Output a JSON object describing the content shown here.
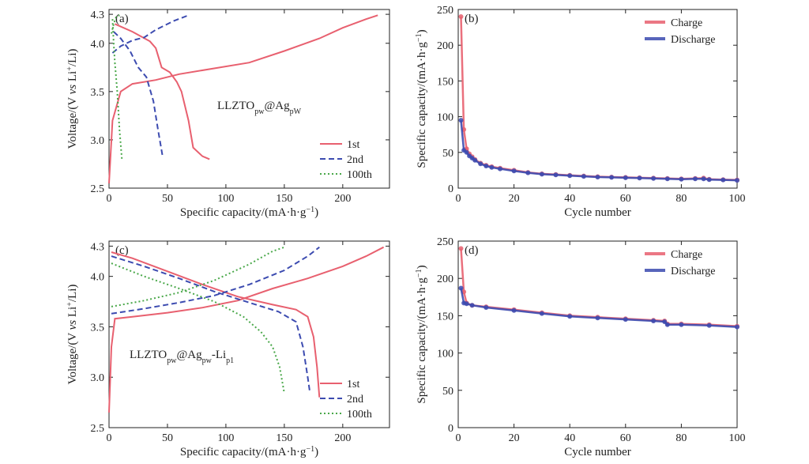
{
  "chart_data": [
    {
      "type": "line",
      "panel_label": "(a)",
      "annotation": {
        "base1": "LLZTO",
        "sub1": "pw",
        "mid": "@Ag",
        "sub2": "pW",
        "tail_base": "",
        "tail_sub": ""
      },
      "ylabel": {
        "a": "Voltage/(V ",
        "vs": "vs",
        "b": " Li",
        "sup": "+",
        "c": "/Li)"
      },
      "xlabel": {
        "a": "Specific capacity/(mA·h·g",
        "sup": "−1",
        "b": ")"
      },
      "xlim": [
        0,
        240
      ],
      "ylim": [
        2.5,
        4.35
      ],
      "xticks": [
        "0",
        "50",
        "100",
        "150",
        "200"
      ],
      "yticks": [
        "2.5",
        "3.0",
        "3.5",
        "4.0",
        "4.3"
      ],
      "legend": "bottom-right",
      "series": [
        {
          "name": "1st",
          "color": "#e8606f",
          "style": "solid",
          "charge": [
            [
              0,
              2.55
            ],
            [
              3,
              3.2
            ],
            [
              10,
              3.5
            ],
            [
              20,
              3.58
            ],
            [
              40,
              3.62
            ],
            [
              60,
              3.68
            ],
            [
              90,
              3.74
            ],
            [
              120,
              3.8
            ],
            [
              150,
              3.92
            ],
            [
              180,
              4.05
            ],
            [
              200,
              4.16
            ],
            [
              220,
              4.25
            ],
            [
              230,
              4.29
            ]
          ],
          "discharge": [
            [
              5,
              4.2
            ],
            [
              20,
              4.12
            ],
            [
              35,
              4.02
            ],
            [
              40,
              3.95
            ],
            [
              45,
              3.75
            ],
            [
              52,
              3.7
            ],
            [
              58,
              3.6
            ],
            [
              62,
              3.5
            ],
            [
              68,
              3.2
            ],
            [
              72,
              2.92
            ],
            [
              80,
              2.83
            ],
            [
              86,
              2.8
            ]
          ]
        },
        {
          "name": "2nd",
          "color": "#3c4bb0",
          "style": "dashed",
          "charge": [
            [
              3,
              3.9
            ],
            [
              10,
              3.97
            ],
            [
              20,
              4.03
            ],
            [
              30,
              4.06
            ],
            [
              40,
              4.14
            ],
            [
              55,
              4.23
            ],
            [
              68,
              4.29
            ]
          ],
          "discharge": [
            [
              4,
              4.12
            ],
            [
              10,
              4.05
            ],
            [
              18,
              3.92
            ],
            [
              25,
              3.75
            ],
            [
              32,
              3.65
            ],
            [
              38,
              3.4
            ],
            [
              42,
              3.1
            ],
            [
              46,
              2.82
            ]
          ]
        },
        {
          "name": "100th",
          "color": "#4aa84a",
          "style": "dotted",
          "charge": [
            [
              2,
              4.1
            ],
            [
              4,
              4.2
            ],
            [
              6,
              4.27
            ],
            [
              9,
              4.29
            ]
          ],
          "discharge": [
            [
              3,
              4.25
            ],
            [
              4,
              4.0
            ],
            [
              5,
              3.8
            ],
            [
              7,
              3.5
            ],
            [
              9,
              3.1
            ],
            [
              11,
              2.8
            ]
          ]
        }
      ]
    },
    {
      "type": "line",
      "panel_label": "(b)",
      "ylabel": {
        "a": "Specific capacity/(mA·h·g",
        "sup": "−1",
        "b": ")"
      },
      "xlabel": "Cycle number",
      "xlim": [
        0,
        100
      ],
      "ylim": [
        0,
        250
      ],
      "xticks": [
        "0",
        "20",
        "40",
        "60",
        "80",
        "100"
      ],
      "yticks": [
        "0",
        "50",
        "100",
        "150",
        "200",
        "250"
      ],
      "legend": "top-right",
      "series": [
        {
          "name": "Charge",
          "color": "#e8606f",
          "points": [
            [
              1,
              240
            ],
            [
              2,
              82
            ],
            [
              3,
              55
            ],
            [
              4,
              48
            ],
            [
              5,
              44
            ],
            [
              6,
              40
            ],
            [
              8,
              35
            ],
            [
              10,
              32
            ],
            [
              12,
              30
            ],
            [
              15,
              28
            ],
            [
              20,
              25
            ],
            [
              25,
              22
            ],
            [
              30,
              20
            ],
            [
              35,
              19
            ],
            [
              40,
              18
            ],
            [
              45,
              17
            ],
            [
              50,
              16
            ],
            [
              55,
              15.5
            ],
            [
              60,
              15
            ],
            [
              65,
              14.5
            ],
            [
              70,
              14
            ],
            [
              75,
              13.5
            ],
            [
              80,
              13
            ],
            [
              85,
              13.5
            ],
            [
              88,
              14
            ],
            [
              90,
              12.5
            ],
            [
              95,
              12
            ],
            [
              100,
              11.5
            ]
          ]
        },
        {
          "name": "Discharge",
          "color": "#3c4bb0",
          "points": [
            [
              1,
              95
            ],
            [
              2,
              53
            ],
            [
              3,
              50
            ],
            [
              4,
              45
            ],
            [
              5,
              42
            ],
            [
              6,
              39
            ],
            [
              8,
              34
            ],
            [
              10,
              31
            ],
            [
              12,
              29
            ],
            [
              15,
              27
            ],
            [
              20,
              24
            ],
            [
              25,
              21.5
            ],
            [
              30,
              19.5
            ],
            [
              35,
              18.5
            ],
            [
              40,
              17.5
            ],
            [
              45,
              16.5
            ],
            [
              50,
              15.5
            ],
            [
              55,
              15
            ],
            [
              60,
              14.5
            ],
            [
              65,
              14
            ],
            [
              70,
              13.5
            ],
            [
              75,
              13
            ],
            [
              80,
              12.5
            ],
            [
              85,
              13
            ],
            [
              88,
              13
            ],
            [
              90,
              12
            ],
            [
              95,
              11.5
            ],
            [
              100,
              11
            ]
          ]
        }
      ]
    },
    {
      "type": "line",
      "panel_label": "(c)",
      "annotation": {
        "base1": "LLZTO",
        "sub1": "pw",
        "mid": "@Ag",
        "sub2": "pw",
        "tail_base": "-Li",
        "tail_sub": "p1"
      },
      "ylabel": {
        "a": "Voltage/(V ",
        "vs": "vs",
        "b": " Li",
        "sup": "+",
        "c": "/Li)"
      },
      "xlabel": {
        "a": "Specific capacity/(mA·h·g",
        "sup": "−1",
        "b": ")"
      },
      "xlim": [
        0,
        240
      ],
      "ylim": [
        2.5,
        4.35
      ],
      "xticks": [
        "0",
        "50",
        "100",
        "150",
        "200"
      ],
      "yticks": [
        "2.5",
        "3.0",
        "3.5",
        "4.0",
        "4.3"
      ],
      "legend": "bottom-right",
      "series": [
        {
          "name": "1st",
          "color": "#e8606f",
          "style": "solid",
          "charge": [
            [
              0,
              2.65
            ],
            [
              2,
              3.3
            ],
            [
              5,
              3.58
            ],
            [
              20,
              3.6
            ],
            [
              50,
              3.64
            ],
            [
              80,
              3.69
            ],
            [
              110,
              3.76
            ],
            [
              140,
              3.88
            ],
            [
              170,
              3.98
            ],
            [
              200,
              4.1
            ],
            [
              220,
              4.2
            ],
            [
              235,
              4.29
            ]
          ],
          "discharge": [
            [
              2,
              4.24
            ],
            [
              20,
              4.18
            ],
            [
              50,
              4.05
            ],
            [
              80,
              3.92
            ],
            [
              110,
              3.8
            ],
            [
              140,
              3.72
            ],
            [
              160,
              3.67
            ],
            [
              170,
              3.6
            ],
            [
              175,
              3.4
            ],
            [
              178,
              3.1
            ],
            [
              180,
              2.8
            ]
          ]
        },
        {
          "name": "2nd",
          "color": "#3c4bb0",
          "style": "dashed",
          "charge": [
            [
              2,
              3.63
            ],
            [
              30,
              3.68
            ],
            [
              60,
              3.74
            ],
            [
              90,
              3.81
            ],
            [
              120,
              3.92
            ],
            [
              150,
              4.06
            ],
            [
              170,
              4.2
            ],
            [
              180,
              4.29
            ]
          ],
          "discharge": [
            [
              2,
              4.2
            ],
            [
              30,
              4.1
            ],
            [
              60,
              3.98
            ],
            [
              90,
              3.85
            ],
            [
              120,
              3.74
            ],
            [
              145,
              3.65
            ],
            [
              160,
              3.55
            ],
            [
              166,
              3.3
            ],
            [
              170,
              3.0
            ],
            [
              172,
              2.84
            ]
          ]
        },
        {
          "name": "100th",
          "color": "#4aa84a",
          "style": "dotted",
          "charge": [
            [
              2,
              3.7
            ],
            [
              30,
              3.76
            ],
            [
              60,
              3.84
            ],
            [
              90,
              3.96
            ],
            [
              120,
              4.12
            ],
            [
              140,
              4.25
            ],
            [
              150,
              4.29
            ]
          ],
          "discharge": [
            [
              2,
              4.13
            ],
            [
              30,
              4.0
            ],
            [
              60,
              3.88
            ],
            [
              90,
              3.75
            ],
            [
              115,
              3.6
            ],
            [
              130,
              3.45
            ],
            [
              140,
              3.3
            ],
            [
              146,
              3.1
            ],
            [
              150,
              2.84
            ]
          ]
        }
      ]
    },
    {
      "type": "line",
      "panel_label": "(d)",
      "ylabel": {
        "a": "Specific capacity/(mA·h·g",
        "sup": "−1",
        "b": ")"
      },
      "xlabel": "Cycle number",
      "xlim": [
        0,
        100
      ],
      "ylim": [
        0,
        250
      ],
      "xticks": [
        "0",
        "20",
        "40",
        "60",
        "80",
        "100"
      ],
      "yticks": [
        "0",
        "50",
        "100",
        "150",
        "200",
        "250"
      ],
      "legend": "top-right",
      "series": [
        {
          "name": "Charge",
          "color": "#e8606f",
          "points": [
            [
              1,
              240
            ],
            [
              2,
              182
            ],
            [
              3,
              167
            ],
            [
              5,
              164
            ],
            [
              10,
              162
            ],
            [
              20,
              158
            ],
            [
              30,
              154
            ],
            [
              40,
              150
            ],
            [
              50,
              148
            ],
            [
              60,
              146
            ],
            [
              70,
              144
            ],
            [
              74,
              143
            ],
            [
              75,
              139
            ],
            [
              80,
              139
            ],
            [
              90,
              138
            ],
            [
              100,
              136
            ]
          ]
        },
        {
          "name": "Discharge",
          "color": "#3c4bb0",
          "points": [
            [
              1,
              187
            ],
            [
              2,
              167
            ],
            [
              3,
              166
            ],
            [
              5,
              164
            ],
            [
              10,
              161
            ],
            [
              20,
              157
            ],
            [
              30,
              153
            ],
            [
              40,
              149
            ],
            [
              50,
              147
            ],
            [
              60,
              145
            ],
            [
              70,
              143
            ],
            [
              74,
              142
            ],
            [
              75,
              138
            ],
            [
              80,
              138
            ],
            [
              90,
              137
            ],
            [
              100,
              135
            ]
          ]
        }
      ]
    }
  ]
}
